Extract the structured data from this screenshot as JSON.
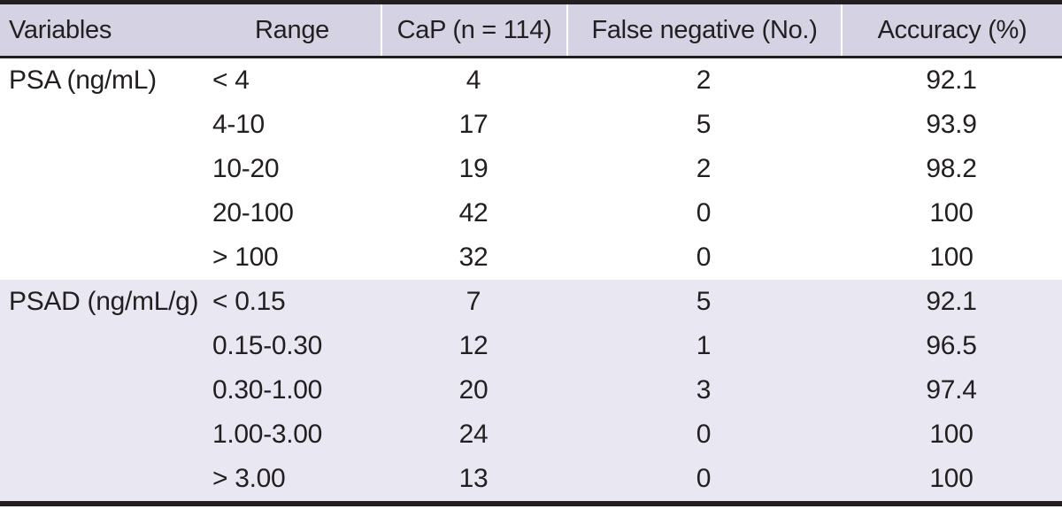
{
  "table": {
    "columns": [
      "Variables",
      "Range",
      "CaP (n = 114)",
      "False negative (No.)",
      "Accuracy (%)"
    ],
    "sections": [
      {
        "variable": "PSA (ng/mL)",
        "rows": [
          {
            "range": "< 4",
            "cap": "4",
            "false_negative": "2",
            "accuracy": "92.1"
          },
          {
            "range": "4-10",
            "cap": "17",
            "false_negative": "5",
            "accuracy": "93.9"
          },
          {
            "range": "10-20",
            "cap": "19",
            "false_negative": "2",
            "accuracy": "98.2"
          },
          {
            "range": "20-100",
            "cap": "42",
            "false_negative": "0",
            "accuracy": "100"
          },
          {
            "range": "> 100",
            "cap": "32",
            "false_negative": "0",
            "accuracy": "100"
          }
        ]
      },
      {
        "variable": "PSAD (ng/mL/g)",
        "rows": [
          {
            "range": "< 0.15",
            "cap": "7",
            "false_negative": "5",
            "accuracy": "92.1"
          },
          {
            "range": "0.15-0.30",
            "cap": "12",
            "false_negative": "1",
            "accuracy": "96.5"
          },
          {
            "range": "0.30-1.00",
            "cap": "20",
            "false_negative": "3",
            "accuracy": "97.4"
          },
          {
            "range": "1.00-3.00",
            "cap": "24",
            "false_negative": "0",
            "accuracy": "100"
          },
          {
            "range": "> 3.00",
            "cap": "13",
            "false_negative": "0",
            "accuracy": "100"
          }
        ]
      }
    ],
    "colors": {
      "header_bg": "#d4d2e3",
      "shaded_section_bg": "#e9e8f2",
      "rule_color": "#231f20",
      "text_color": "#231f20"
    }
  }
}
